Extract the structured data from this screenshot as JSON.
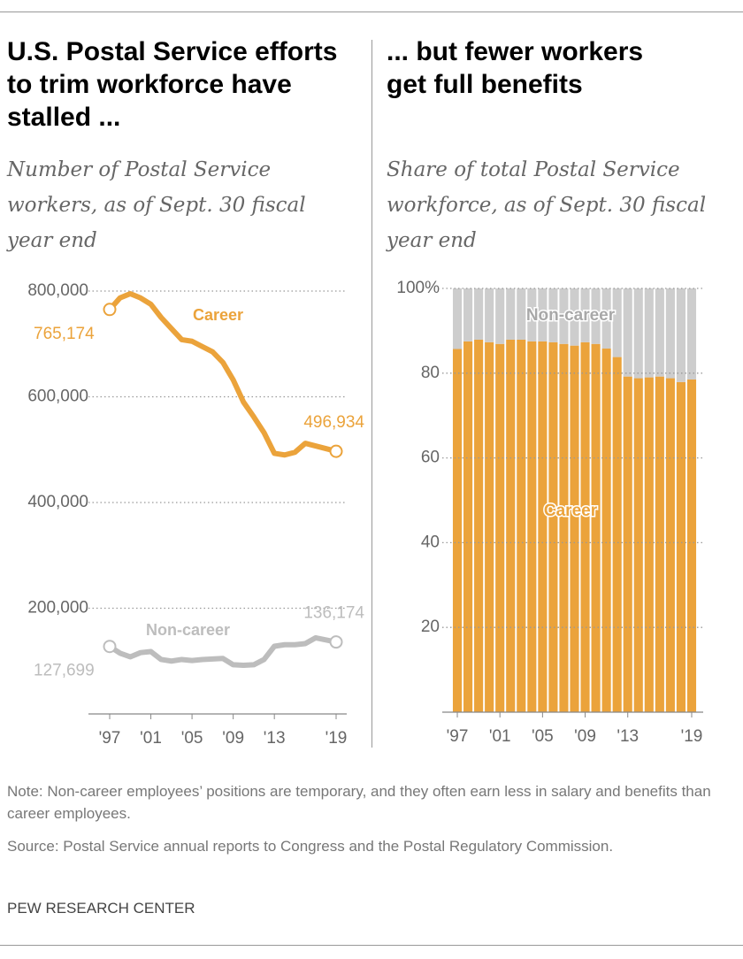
{
  "chart_data": [
    {
      "type": "line",
      "title": "U.S. Postal Service efforts to trim workforce have stalled ...",
      "subtitle": "Number of Postal Service workers, as of Sept. 30 fiscal year end",
      "categories": [
        "'97",
        null,
        null,
        null,
        "'01",
        null,
        null,
        null,
        "'05",
        null,
        null,
        null,
        "'09",
        null,
        null,
        null,
        "'13",
        null,
        null,
        null,
        null,
        null,
        "'19"
      ],
      "series": [
        {
          "name": "Career",
          "color": "#eba33b",
          "values": [
            765174,
            787000,
            795000,
            787000,
            775000,
            750000,
            729000,
            708000,
            705000,
            695000,
            685000,
            665000,
            632000,
            590000,
            562000,
            532000,
            493000,
            490000,
            495000,
            512000,
            507000,
            502000,
            496934
          ],
          "value_labels": [
            "765,174",
            null,
            null,
            null,
            null,
            null,
            null,
            null,
            null,
            null,
            null,
            null,
            null,
            null,
            null,
            null,
            null,
            null,
            null,
            null,
            null,
            null,
            "496,934"
          ]
        },
        {
          "name": "Non-career",
          "color": "#bdbdbd",
          "values": [
            127699,
            115000,
            108000,
            116000,
            118000,
            103000,
            100000,
            103000,
            101000,
            103000,
            104000,
            105000,
            93000,
            92000,
            93000,
            103000,
            128000,
            131000,
            131000,
            133000,
            144000,
            140000,
            136174
          ],
          "value_labels": [
            "127,699",
            null,
            null,
            null,
            null,
            null,
            null,
            null,
            null,
            null,
            null,
            null,
            null,
            null,
            null,
            null,
            null,
            null,
            null,
            null,
            null,
            null,
            "136,174"
          ]
        }
      ],
      "ylim": [
        0,
        800000
      ],
      "yticks": [
        {
          "value": 200000,
          "label": "200,000"
        },
        {
          "value": 400000,
          "label": "400,000"
        },
        {
          "value": 600000,
          "label": "600,000"
        },
        {
          "value": 800000,
          "label": "800,000"
        }
      ],
      "grid": true
    },
    {
      "type": "stacked_bar",
      "title": "... but fewer workers get full benefits",
      "subtitle": "Share of total Postal Service workforce, as of Sept. 30 fiscal year end",
      "categories": [
        "'97",
        null,
        null,
        null,
        "'01",
        null,
        null,
        null,
        "'05",
        null,
        null,
        null,
        "'09",
        null,
        null,
        null,
        "'13",
        null,
        null,
        null,
        null,
        null,
        "'19"
      ],
      "series": [
        {
          "name": "Career",
          "color": "#eba33b",
          "values": [
            85.7,
            87.5,
            87.9,
            87.3,
            86.9,
            87.9,
            87.9,
            87.5,
            87.5,
            87.3,
            86.9,
            86.5,
            87.3,
            86.9,
            85.8,
            83.8,
            79.2,
            78.8,
            79.0,
            79.2,
            78.8,
            77.9,
            78.5
          ]
        },
        {
          "name": "Non-career",
          "color": "#cdcdcd",
          "values": [
            14.3,
            12.5,
            12.1,
            12.7,
            13.1,
            12.1,
            12.1,
            12.5,
            12.5,
            12.7,
            13.1,
            13.5,
            12.7,
            13.1,
            14.2,
            16.2,
            20.8,
            21.2,
            21.0,
            20.8,
            21.2,
            22.1,
            21.5
          ]
        }
      ],
      "ylim": [
        0,
        100
      ],
      "yticks": [
        20,
        40,
        60,
        80,
        {
          "value": 100,
          "label": "100%"
        }
      ],
      "grid": true
    }
  ],
  "note": "Note: Non-career employees’ positions are temporary, and they often earn less in salary and benefits than career employees.",
  "source": "Source: Postal Service annual reports to Congress and the Postal Regulatory Commission.",
  "credit": "PEW RESEARCH CENTER"
}
